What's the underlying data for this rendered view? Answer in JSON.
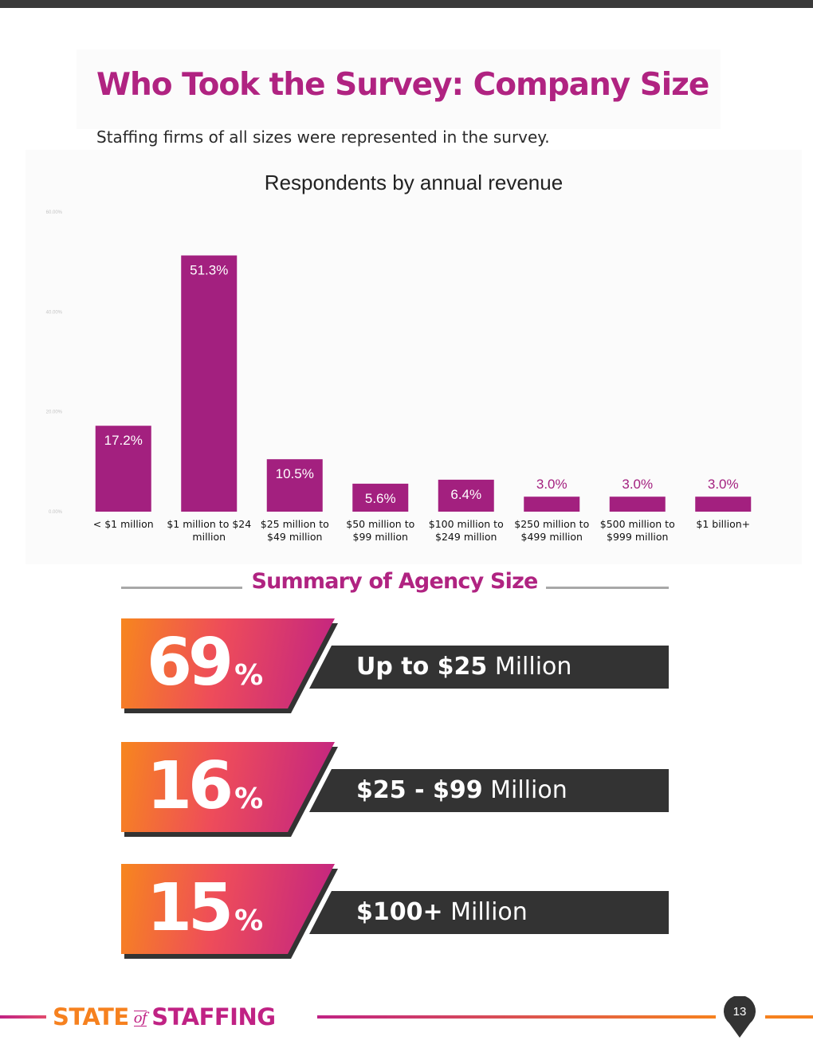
{
  "page": {
    "title": "Who Took the Survey: Company Size",
    "subtitle": "Staffing firms of all sizes were represented in the survey.",
    "page_number": "13"
  },
  "colors": {
    "brand_magenta": "#b02381",
    "brand_orange": "#f6811f",
    "band_dark": "#333333",
    "bar_color": "#a3207f"
  },
  "chart_data": {
    "type": "bar",
    "title": "Respondents by annual revenue",
    "categories": [
      "< $1 million",
      "$1 million to $24 million",
      "$25 million to $49 million",
      "$50 million to $99 million",
      "$100 million to $249 million",
      "$250 million to $499 million",
      "$500 million to $999 million",
      "$1 billion+"
    ],
    "category_lines": [
      [
        "< $1 million"
      ],
      [
        "$1 million to $24",
        "million"
      ],
      [
        "$25 million to",
        "$49 million"
      ],
      [
        "$50 million to",
        "$99 million"
      ],
      [
        "$100 million to",
        "$249 million"
      ],
      [
        "$250 million to",
        "$499 million"
      ],
      [
        "$500 million to",
        "$999 million"
      ],
      [
        "$1 billion+"
      ]
    ],
    "values": [
      17.2,
      51.3,
      10.5,
      5.6,
      6.4,
      3.0,
      3.0,
      3.0
    ],
    "data_labels": [
      "17.2%",
      "51.3%",
      "10.5%",
      "5.6%",
      "6.4%",
      "3.0%",
      "3.0%",
      "3.0%"
    ],
    "ylim": [
      0,
      60
    ],
    "yticks": [
      "0.00%",
      "20.00%",
      "40.00%",
      "60.00%"
    ],
    "xlabel": "",
    "ylabel": "",
    "legend": "none",
    "grid": false
  },
  "summary": {
    "heading": "Summary of Agency Size",
    "rows": [
      {
        "value": "69",
        "unit": "%",
        "bold": "Up to $25",
        "rest": " Million"
      },
      {
        "value": "16",
        "unit": "%",
        "bold": "$25 - $99",
        "rest": " Million"
      },
      {
        "value": "15",
        "unit": "%",
        "bold": "$100+",
        "rest": " Million"
      }
    ]
  },
  "footer": {
    "logo_state": "STATE",
    "logo_of": "of",
    "logo_staffing": "STAFFING"
  }
}
